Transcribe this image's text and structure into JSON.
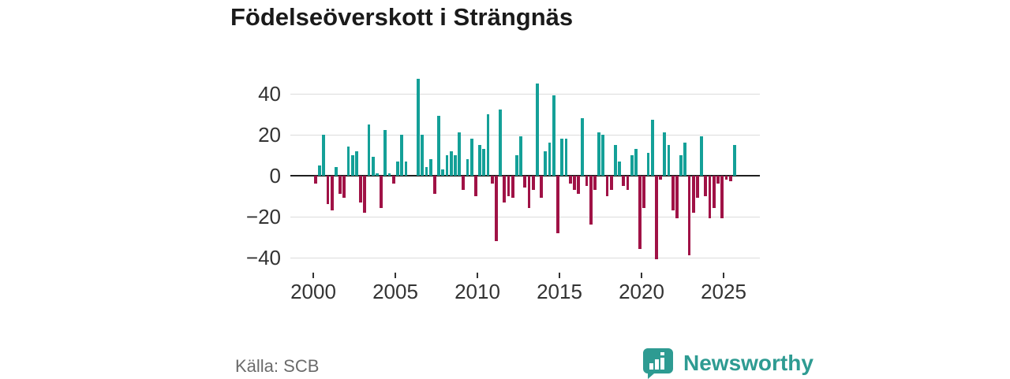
{
  "title": "Födelseöverskott i Strängnäs",
  "source": "Källa: SCB",
  "branding": {
    "name": "Newsworthy",
    "logo_icon": "speech-bubble-with-bar-chart-and-exclamation",
    "color": "#2E9B92"
  },
  "colors": {
    "positive_bar": "#14A098",
    "negative_bar": "#A01246",
    "gridline": "#dcdcdc",
    "zero_line": "#1f1f1f",
    "axis_text": "#333333",
    "title_text": "#1a1a1a",
    "source_text": "#6b6b6b"
  },
  "chart_data": {
    "type": "bar",
    "title": "Födelseöverskott i Strängnäs",
    "xlabel": "",
    "ylabel": "",
    "frequency": "quarterly",
    "start": "2000Q1",
    "end": "2025Q3",
    "x_tick_labels": [
      "2000",
      "2005",
      "2010",
      "2015",
      "2020",
      "2025"
    ],
    "x_tick_years": [
      2000,
      2005,
      2010,
      2015,
      2020,
      2025
    ],
    "y_tick_labels": [
      "40",
      "20",
      "0",
      "−20",
      "−40"
    ],
    "y_ticks": [
      40,
      20,
      0,
      -20,
      -40
    ],
    "ylim": [
      -44,
      52
    ],
    "grid": "horizontal-only",
    "legend": "none",
    "positive_color": "#14A098",
    "negative_color": "#A01246",
    "values": [
      -4,
      5,
      20,
      -14,
      -17,
      4,
      -9,
      -11,
      14,
      10,
      12,
      -13,
      -18,
      25,
      9,
      1,
      -16,
      22,
      1,
      -4,
      7,
      20,
      7,
      0,
      0,
      47,
      20,
      4,
      8,
      -9,
      29,
      3,
      10,
      12,
      10,
      21,
      -7,
      8,
      18,
      -10,
      15,
      13,
      30,
      -4,
      -32,
      32,
      -13,
      -10,
      -11,
      10,
      19,
      -6,
      -16,
      -7,
      45,
      -11,
      12,
      16,
      39,
      -28,
      18,
      18,
      -4,
      -7,
      -9,
      28,
      -5,
      -24,
      -7,
      21,
      20,
      -10,
      -7,
      15,
      7,
      -5,
      -7,
      10,
      13,
      -36,
      -16,
      11,
      27,
      -41,
      -2,
      21,
      15,
      -17,
      -21,
      10,
      16,
      -39,
      -18,
      -11,
      19,
      -10,
      -21,
      -16,
      -4,
      -21,
      -2,
      -3,
      15
    ]
  }
}
